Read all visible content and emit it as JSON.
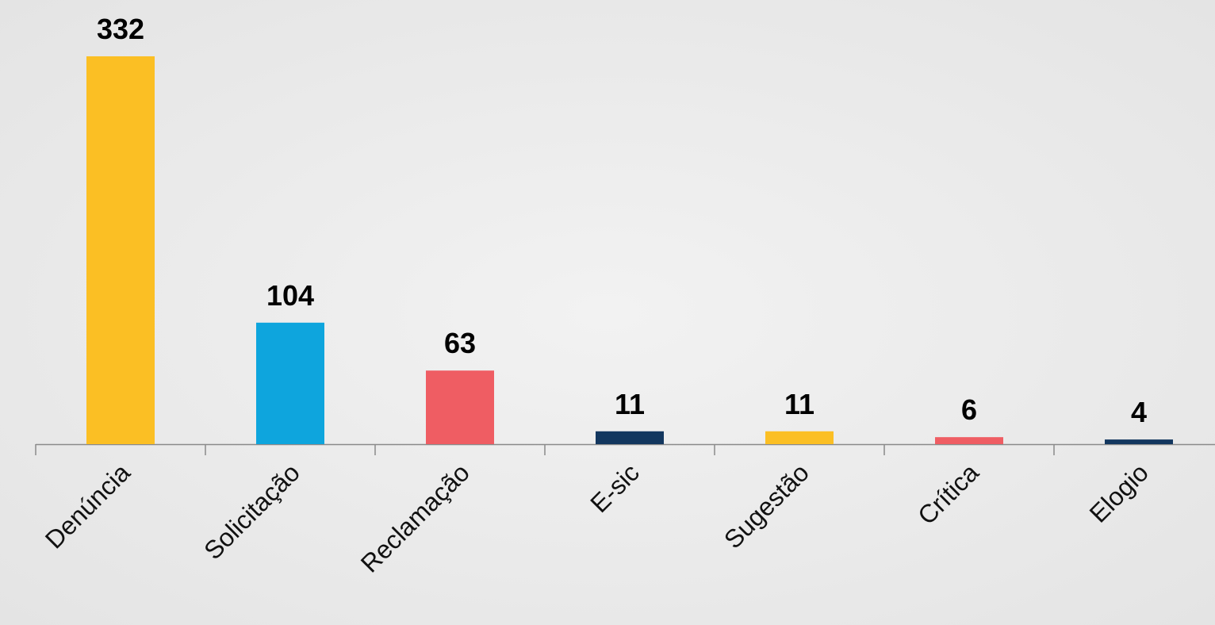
{
  "chart_data": {
    "type": "bar",
    "categories": [
      "Denúncia",
      "Solicitação",
      "Reclamação",
      "E-sic",
      "Sugestão",
      "Crítica",
      "Elogio"
    ],
    "values": [
      332,
      104,
      63,
      11,
      11,
      6,
      4
    ],
    "colors": [
      "#fbbf24",
      "#0ea5dd",
      "#ef5d63",
      "#13375f",
      "#fbbf24",
      "#ef5d63",
      "#13375f"
    ]
  }
}
